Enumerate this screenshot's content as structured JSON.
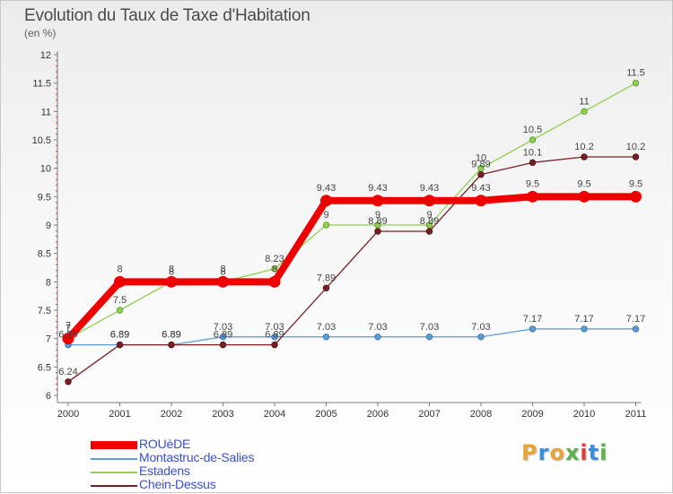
{
  "header": {
    "title": "Evolution du Taux de Taxe d'Habitation",
    "subtitle": "(en %)"
  },
  "logo": {
    "letters": [
      "P",
      "r",
      "o",
      "x",
      "i",
      "t",
      "i"
    ],
    "colors": [
      "#e8a43a",
      "#3b8ed9",
      "#e8a43a",
      "#5bb34a",
      "#d9433b",
      "#3b8ed9",
      "#5bb34a"
    ]
  },
  "chart_data": {
    "type": "line",
    "title": "Evolution du Taux de Taxe d'Habitation",
    "subtitle": "(en %)",
    "xlabel": "",
    "ylabel": "",
    "categories": [
      "2000",
      "2001",
      "2002",
      "2003",
      "2004",
      "2005",
      "2006",
      "2007",
      "2008",
      "2009",
      "2010",
      "2011"
    ],
    "ylim": [
      6,
      12
    ],
    "yticks": [
      "6",
      "6.5",
      "7",
      "7.5",
      "8",
      "8.5",
      "9",
      "9.5",
      "10",
      "10.5",
      "11",
      "11.5",
      "12"
    ],
    "grid": false,
    "legend_position": "bottom-left",
    "series": [
      {
        "name": "ROUèDE",
        "color": "#ee0000",
        "values": [
          7,
          8,
          8,
          8,
          8,
          9.43,
          9.43,
          9.43,
          9.43,
          9.5,
          9.5,
          9.5
        ],
        "labels": [
          "7",
          "8",
          "8",
          "8",
          "8",
          "9.43",
          "9.43",
          "9.43",
          "9.43",
          "9.5",
          "9.5",
          "9.5"
        ]
      },
      {
        "name": "Montastruc-de-Salies",
        "color": "#5b9bd5",
        "values": [
          6.89,
          6.89,
          6.89,
          7.03,
          7.03,
          7.03,
          7.03,
          7.03,
          7.03,
          7.17,
          7.17,
          7.17
        ],
        "labels": [
          "6.89",
          "6.89",
          "6.89",
          "7.03",
          "7.03",
          "7.03",
          "7.03",
          "7.03",
          "7.03",
          "7.17",
          "7.17",
          "7.17"
        ]
      },
      {
        "name": "Estadens",
        "color": "#8fd14f",
        "values": [
          7,
          7.5,
          8,
          8,
          8.23,
          9,
          9,
          9,
          10,
          10.5,
          11,
          11.5
        ],
        "labels": [
          "7",
          "7.5",
          "8",
          "8",
          "8.23",
          "9",
          "9",
          "9",
          "10",
          "10.5",
          "11",
          "11.5"
        ]
      },
      {
        "name": "Chein-Dessus",
        "color": "#7a1f24",
        "values": [
          6.24,
          6.89,
          6.89,
          6.89,
          6.89,
          7.89,
          8.89,
          8.89,
          9.89,
          10.1,
          10.2,
          10.2
        ],
        "labels": [
          "6.24",
          "6.89",
          "6.89",
          "6.89",
          "6.89",
          "7.89",
          "8.89",
          "8.89",
          "9.89",
          "10.1",
          "10.2",
          "10.2"
        ]
      }
    ]
  }
}
